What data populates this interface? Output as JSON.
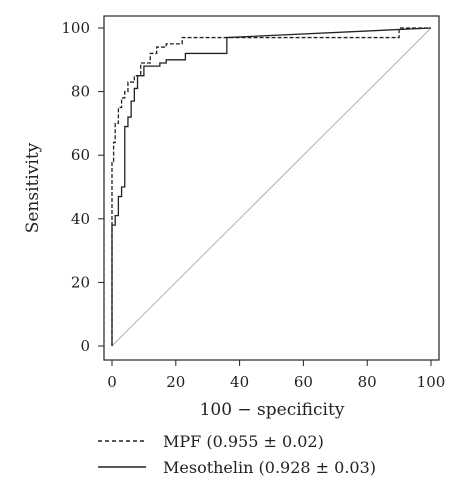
{
  "chart_data": {
    "type": "line",
    "title": "",
    "xlabel": "100 − specificity",
    "ylabel": "Sensitivity",
    "xlim": [
      0,
      100
    ],
    "ylim": [
      0,
      100
    ],
    "x_ticks": [
      "0",
      "20",
      "40",
      "60",
      "80",
      "100"
    ],
    "y_ticks": [
      "0",
      "20",
      "40",
      "60",
      "80",
      "100"
    ],
    "grid": false,
    "legend_position": "bottom",
    "reference_line": {
      "x": [
        0,
        100
      ],
      "y": [
        0,
        100
      ],
      "color": "#aaaaaa"
    },
    "series": [
      {
        "name": "MPF (0.955 ± 0.02)",
        "style": "dashed",
        "color": "#222222",
        "x": [
          0,
          0,
          0.5,
          0.5,
          1,
          1,
          2,
          2,
          3,
          3,
          4,
          4,
          5,
          5,
          7,
          7,
          9,
          9,
          12,
          12,
          14,
          14,
          17,
          17,
          22,
          22,
          37,
          90,
          90,
          100
        ],
        "y": [
          0,
          58,
          58,
          64,
          64,
          70,
          70,
          75,
          75,
          78,
          78,
          80,
          80,
          83,
          83,
          85,
          85,
          89,
          89,
          92,
          92,
          94,
          94,
          95,
          95,
          97,
          97,
          97,
          100,
          100
        ]
      },
      {
        "name": "Mesothelin (0.928 ± 0.03)",
        "style": "solid",
        "color": "#222222",
        "x": [
          0,
          0,
          1,
          1,
          2,
          2,
          3,
          3,
          4,
          4,
          5,
          5,
          6,
          6,
          7,
          7,
          8,
          8,
          10,
          10,
          15,
          15,
          17,
          17,
          23,
          23,
          36,
          36,
          100
        ],
        "y": [
          0,
          38,
          38,
          41,
          41,
          47,
          47,
          50,
          50,
          69,
          69,
          72,
          72,
          77,
          77,
          81,
          81,
          85,
          85,
          88,
          88,
          89,
          89,
          90,
          90,
          92,
          92,
          97,
          100
        ]
      }
    ]
  },
  "legend": {
    "items": [
      {
        "label": "MPF (0.955 ± 0.02)",
        "style": "dashed"
      },
      {
        "label": "Mesothelin (0.928 ± 0.03)",
        "style": "solid"
      }
    ]
  }
}
